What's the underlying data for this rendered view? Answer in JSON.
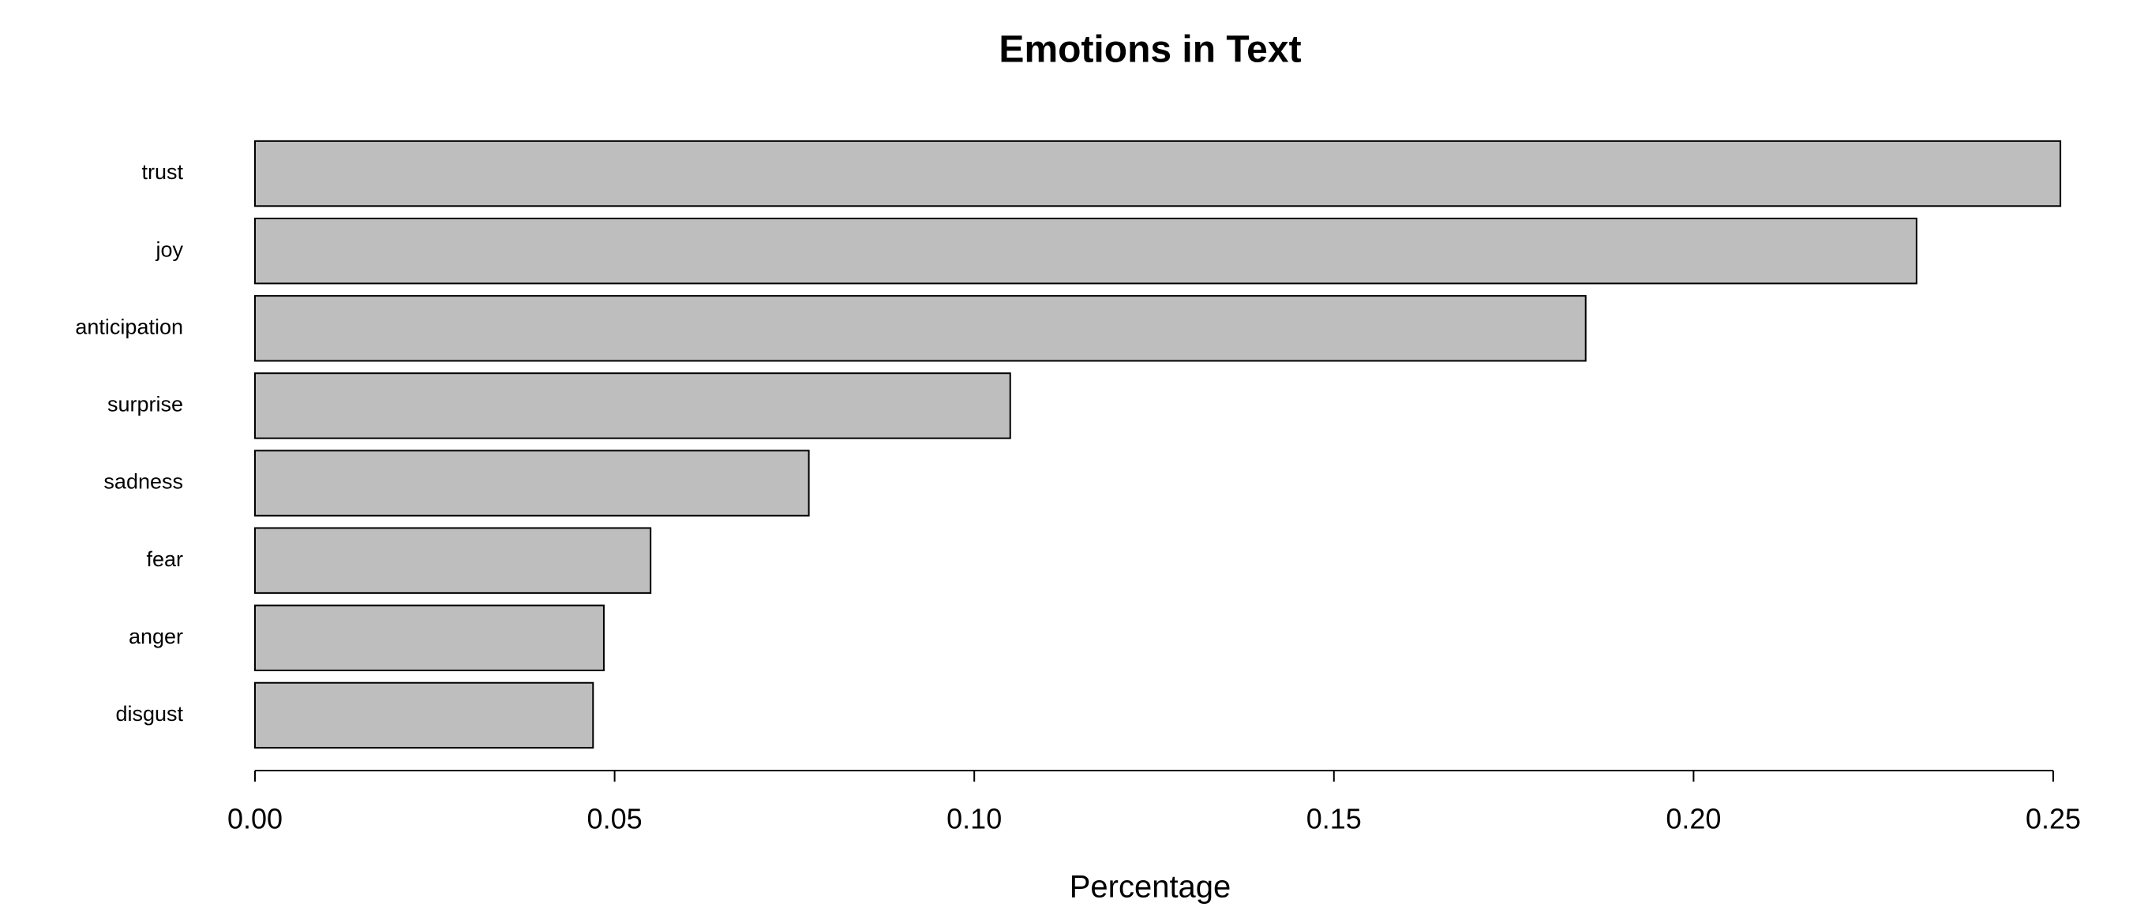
{
  "chart_data": {
    "type": "barh",
    "title": "Emotions in Text",
    "xlabel": "Percentage",
    "categories": [
      "trust",
      "joy",
      "anticipation",
      "surprise",
      "sadness",
      "fear",
      "anger",
      "disgust"
    ],
    "values": [
      0.251,
      0.231,
      0.185,
      0.105,
      0.077,
      0.055,
      0.0485,
      0.047
    ],
    "color": "#bebebe",
    "edgecolor": "#000000",
    "xlim": [
      0,
      0.25
    ],
    "xticks": [
      {
        "value": 0,
        "label": "0.00"
      },
      {
        "value": 0.05,
        "label": "0.05"
      },
      {
        "value": 0.1,
        "label": "0.10"
      },
      {
        "value": 0.15,
        "label": "0.15"
      },
      {
        "value": 0.2,
        "label": "0.20"
      },
      {
        "value": 0.25,
        "label": "0.25"
      }
    ],
    "grid": false
  }
}
